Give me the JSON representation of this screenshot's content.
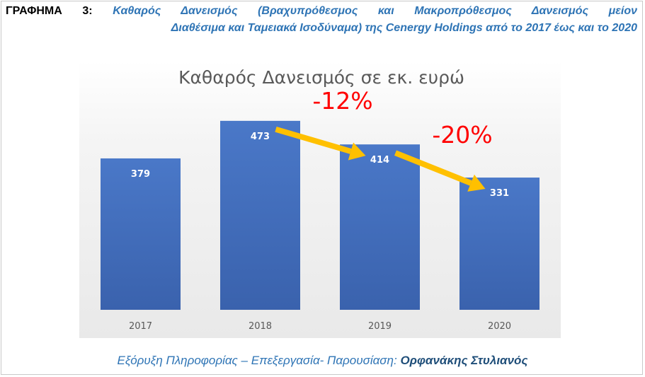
{
  "caption": {
    "label": "ΓΡΑΦΗΜΑ 3:",
    "line1": "Καθαρός Δανεισμός (Βραχυπρόθεσμος και Μακροπρόθεσμος Δανεισμός μείον",
    "line2": "Διαθέσιμα και Ταμειακά Ισοδύναμα) της Cenergy Holdings από το 2017 έως και το 2020"
  },
  "chart_data": {
    "type": "bar",
    "title": "Καθαρός Δανεισμός σε εκ. ευρώ",
    "categories": [
      "2017",
      "2018",
      "2019",
      "2020"
    ],
    "values": [
      379,
      473,
      414,
      331
    ],
    "data_labels": [
      "379",
      "473",
      "414",
      "331"
    ],
    "ylim": [
      0,
      520
    ],
    "grid": false,
    "bar_color": "#4472c4",
    "annotations": [
      {
        "text": "-12%",
        "from": "2018",
        "to": "2019",
        "color": "#ff0000"
      },
      {
        "text": "-20%",
        "from": "2019",
        "to": "2020",
        "color": "#ff0000"
      }
    ],
    "arrow_color": "#ffc000"
  },
  "footer": {
    "text": "Εξόρυξη Πληροφορίας – Επεξεργασία- Παρουσίαση: ",
    "author": "Ορφανάκης Στυλιανός"
  }
}
